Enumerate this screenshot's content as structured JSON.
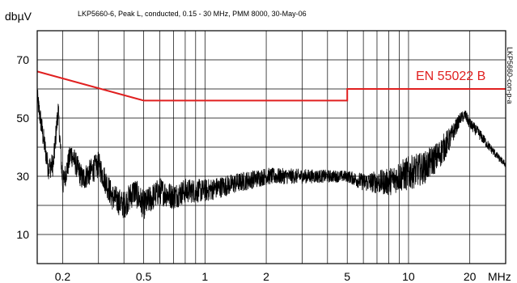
{
  "chart_data": {
    "type": "line",
    "title": "LKP5660-6, Peak L, conducted, 0.15 - 30 MHz, PMM 8000, 30-May-06",
    "ylabel": "dbµV",
    "xlabel": "MHz",
    "side_label": "LKP5660-con-p-a",
    "x_scale": "log",
    "xlim": [
      0.15,
      30
    ],
    "ylim": [
      0,
      80
    ],
    "grid": true,
    "x_ticks": [
      {
        "value": 0.2,
        "label": "0.2"
      },
      {
        "value": 0.5,
        "label": "0.5"
      },
      {
        "value": 1,
        "label": "1"
      },
      {
        "value": 2,
        "label": "2"
      },
      {
        "value": 5,
        "label": "5"
      },
      {
        "value": 10,
        "label": "10"
      },
      {
        "value": 20,
        "label": "20"
      }
    ],
    "y_ticks": [
      {
        "value": 10,
        "label": "10"
      },
      {
        "value": 30,
        "label": "30"
      },
      {
        "value": 50,
        "label": "50"
      },
      {
        "value": 70,
        "label": "70"
      }
    ],
    "limit_line": {
      "name": "EN 55022 B",
      "color": "#e02020",
      "points": [
        [
          0.15,
          66
        ],
        [
          0.5,
          56
        ],
        [
          5,
          56
        ],
        [
          5,
          60
        ],
        [
          30,
          60
        ]
      ]
    },
    "series": [
      {
        "color": "#000000",
        "envelope": [
          [
            0.15,
            57
          ],
          [
            0.16,
            44
          ],
          [
            0.17,
            33
          ],
          [
            0.18,
            34
          ],
          [
            0.19,
            53
          ],
          [
            0.2,
            27
          ],
          [
            0.22,
            38
          ],
          [
            0.25,
            29
          ],
          [
            0.3,
            34
          ],
          [
            0.35,
            23
          ],
          [
            0.4,
            20
          ],
          [
            0.45,
            25
          ],
          [
            0.5,
            20
          ],
          [
            0.6,
            25
          ],
          [
            0.7,
            23
          ],
          [
            0.8,
            25
          ],
          [
            1,
            25
          ],
          [
            1.5,
            28
          ],
          [
            2,
            30
          ],
          [
            3,
            30
          ],
          [
            4,
            30
          ],
          [
            5,
            30
          ],
          [
            6,
            28
          ],
          [
            7,
            28
          ],
          [
            8,
            28
          ],
          [
            9,
            30
          ],
          [
            10,
            31
          ],
          [
            12,
            33
          ],
          [
            14,
            37
          ],
          [
            16,
            43
          ],
          [
            18,
            50
          ],
          [
            19,
            51
          ],
          [
            20,
            48
          ],
          [
            22,
            45
          ],
          [
            25,
            40
          ],
          [
            28,
            36
          ],
          [
            30,
            34
          ]
        ],
        "noise_amplitude": [
          [
            0.15,
            4
          ],
          [
            0.5,
            5
          ],
          [
            1,
            4
          ],
          [
            2,
            3
          ],
          [
            5,
            2
          ],
          [
            7,
            4
          ],
          [
            10,
            6
          ],
          [
            15,
            5
          ],
          [
            18,
            2
          ],
          [
            22,
            2
          ],
          [
            30,
            1
          ]
        ]
      }
    ]
  }
}
